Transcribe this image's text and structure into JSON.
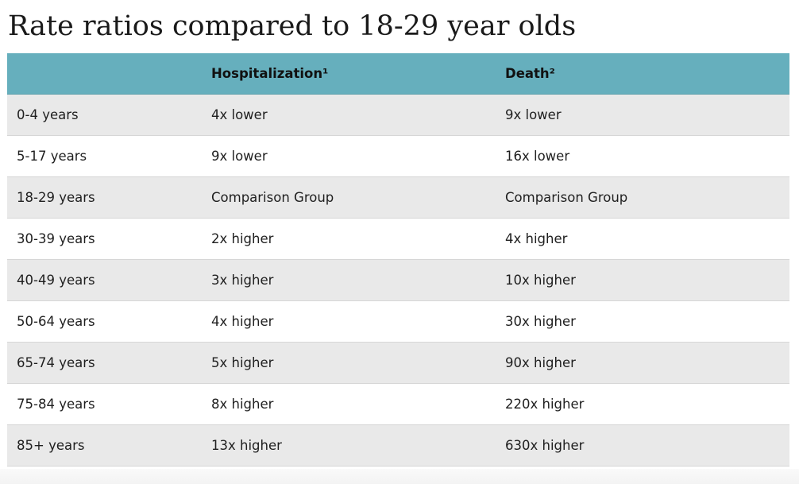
{
  "title": "Rate ratios compared to 18-29 year olds",
  "table": {
    "headers": [
      "",
      "Hospitalization¹",
      "Death²"
    ],
    "rows": [
      [
        "0-4 years",
        "4x lower",
        "9x lower"
      ],
      [
        "5-17 years",
        "9x lower",
        "16x lower"
      ],
      [
        "18-29 years",
        "Comparison Group",
        "Comparison Group"
      ],
      [
        "30-39 years",
        "2x higher",
        "4x higher"
      ],
      [
        "40-49 years",
        "3x higher",
        "10x higher"
      ],
      [
        "50-64 years",
        "4x higher",
        "30x higher"
      ],
      [
        "65-74 years",
        "5x higher",
        "90x higher"
      ],
      [
        "75-84 years",
        "8x higher",
        "220x higher"
      ],
      [
        "85+ years",
        "13x higher",
        "630x higher"
      ]
    ]
  },
  "colors": {
    "header_bg": "#66afbd",
    "row_alt_bg": "#e9e9e9",
    "row_bg": "#ffffff"
  }
}
